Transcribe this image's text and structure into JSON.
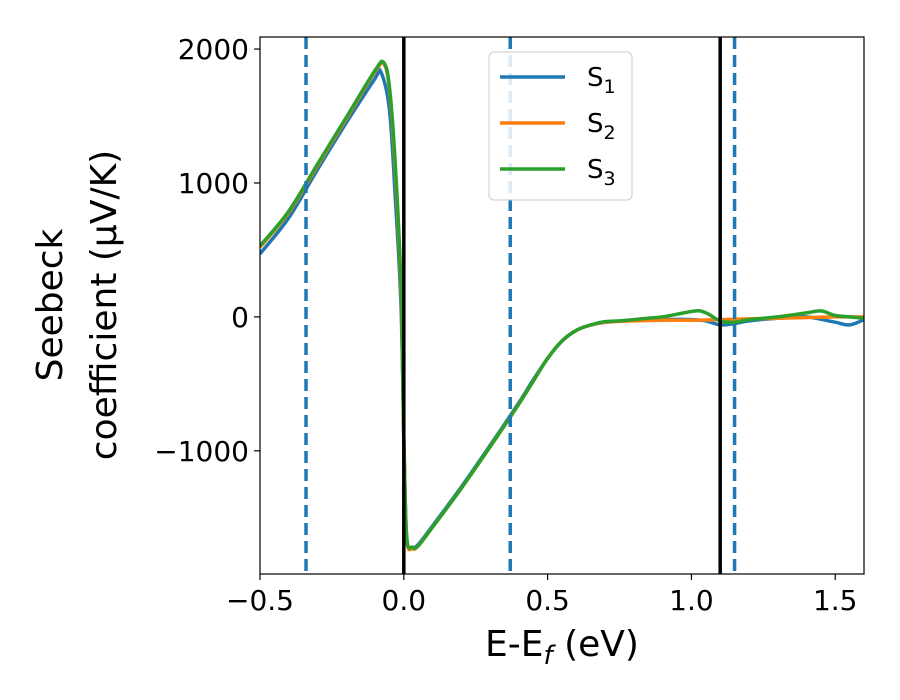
{
  "chart_data": {
    "type": "line",
    "title": "",
    "xlabel": {
      "main": "E-E",
      "sub": "f",
      "unit": " (eV)"
    },
    "ylabel": {
      "line1": "Seebeck",
      "line2": "coefficient  (μV/K)"
    },
    "xlim": [
      -0.5,
      1.6
    ],
    "ylim": [
      -1920,
      2090
    ],
    "xticks": [
      -0.5,
      0.0,
      0.5,
      1.0,
      1.5
    ],
    "xtick_labels": [
      "−0.5",
      "0.0",
      "0.5",
      "1.0",
      "1.5"
    ],
    "yticks": [
      -1000,
      0,
      1000,
      2000
    ],
    "ytick_labels": [
      "−1000",
      "0",
      "1000",
      "2000"
    ],
    "grid": false,
    "legend_position": "top-center",
    "vlines_solid": [
      0.0,
      1.1
    ],
    "vlines_dashed": [
      -0.34,
      0.37,
      1.15
    ],
    "vline_solid_color": "#000000",
    "vline_dashed_color": "#1f77b4",
    "series": [
      {
        "name": "S",
        "sub": "1",
        "color": "#1f77b4",
        "x": [
          -0.5,
          -0.4,
          -0.3,
          -0.2,
          -0.1,
          -0.08,
          -0.05,
          -0.03,
          -0.01,
          0.0,
          0.01,
          0.03,
          0.05,
          0.1,
          0.2,
          0.3,
          0.4,
          0.45,
          0.5,
          0.55,
          0.6,
          0.65,
          0.7,
          0.8,
          0.9,
          1.0,
          1.05,
          1.1,
          1.15,
          1.2,
          1.3,
          1.4,
          1.5,
          1.55,
          1.6
        ],
        "y": [
          470,
          740,
          1100,
          1450,
          1780,
          1830,
          1550,
          900,
          100,
          -900,
          -1650,
          -1720,
          -1700,
          -1560,
          -1270,
          -960,
          -640,
          -470,
          -310,
          -180,
          -100,
          -60,
          -40,
          -25,
          -20,
          -20,
          -30,
          -60,
          -50,
          -30,
          -10,
          0,
          -40,
          -60,
          -20
        ]
      },
      {
        "name": "S",
        "sub": "2",
        "color": "#ff7f0e",
        "x": [
          -0.5,
          -0.4,
          -0.3,
          -0.2,
          -0.1,
          -0.07,
          -0.05,
          -0.03,
          -0.01,
          0.0,
          0.01,
          0.03,
          0.05,
          0.1,
          0.2,
          0.3,
          0.4,
          0.45,
          0.5,
          0.55,
          0.6,
          0.65,
          0.7,
          0.8,
          0.9,
          1.0,
          1.1,
          1.2,
          1.3,
          1.4,
          1.5,
          1.6
        ],
        "y": [
          520,
          780,
          1130,
          1480,
          1830,
          1890,
          1700,
          1100,
          200,
          -900,
          -1650,
          -1730,
          -1710,
          -1570,
          -1280,
          -970,
          -650,
          -480,
          -310,
          -180,
          -100,
          -60,
          -40,
          -30,
          -25,
          -25,
          -20,
          -15,
          -10,
          -5,
          0,
          0
        ]
      },
      {
        "name": "S",
        "sub": "3",
        "color": "#2ca02c",
        "x": [
          -0.5,
          -0.4,
          -0.3,
          -0.2,
          -0.1,
          -0.07,
          -0.05,
          -0.03,
          -0.01,
          0.0,
          0.01,
          0.03,
          0.05,
          0.1,
          0.2,
          0.3,
          0.4,
          0.45,
          0.5,
          0.55,
          0.6,
          0.65,
          0.7,
          0.75,
          0.8,
          0.85,
          0.9,
          0.95,
          1.0,
          1.03,
          1.06,
          1.1,
          1.15,
          1.2,
          1.3,
          1.4,
          1.45,
          1.5,
          1.55,
          1.6
        ],
        "y": [
          530,
          790,
          1140,
          1490,
          1840,
          1900,
          1720,
          1150,
          250,
          -900,
          -1640,
          -1720,
          -1710,
          -1570,
          -1280,
          -970,
          -650,
          -480,
          -310,
          -180,
          -100,
          -60,
          -35,
          -30,
          -20,
          -10,
          0,
          20,
          40,
          45,
          20,
          -30,
          -40,
          -20,
          0,
          30,
          45,
          10,
          0,
          -10
        ]
      }
    ]
  }
}
